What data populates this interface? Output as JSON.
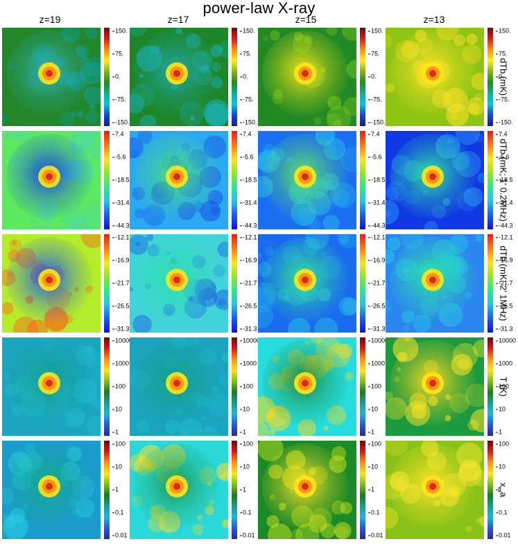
{
  "title": "power-law X-ray",
  "columns": [
    "z=19",
    "z=17",
    "z=15",
    "z=13"
  ],
  "colormaps": {
    "cmA": [
      "#141c8c",
      "#1846d6",
      "#00c8d8",
      "#11b090",
      "#1f8c1c",
      "#86b41a",
      "#ffee18",
      "#ff8c10",
      "#dd1a1a",
      "#6e0a0a"
    ],
    "cmB": [
      "#0f12d8",
      "#1a5cf5",
      "#22c6e8",
      "#2ce88a",
      "#8ee828",
      "#ffe21c",
      "#ff7a14",
      "#e81a14"
    ],
    "cmC": [
      "#28289a",
      "#2a56dc",
      "#1ab8d8",
      "#15a08e",
      "#1c7a1c",
      "#7cc21a",
      "#ffe418",
      "#ff9210",
      "#d81a18",
      "#6a0808"
    ]
  },
  "rows": [
    {
      "label": "dTb (mK)",
      "colormap": "cmA",
      "ticks": [
        "150.",
        "75.",
        "0.",
        "-75.",
        "-150."
      ],
      "panels": [
        {
          "bg": "#22862a",
          "halo": "#31b0b0",
          "spots": "#0ba5b2"
        },
        {
          "bg": "#1e8628",
          "halo": "#20a8a6",
          "spots": "#1ab6c4"
        },
        {
          "bg": "#228a24",
          "halo": "#f2e418",
          "spots": "#7ac61e"
        },
        {
          "bg": "#90c414",
          "halo": "#ffe426",
          "spots": "#ffe228"
        }
      ]
    },
    {
      "label": "dTb (mK; 1' 0.2MHz)",
      "colormap": "cmB",
      "ticks": [
        "7.4",
        "-5.6",
        "-18.5",
        "-31.4",
        "-44.3"
      ],
      "panels": [
        {
          "bg": "#5ce860",
          "halo": "#1846e6",
          "spots": "#4ad8b0"
        },
        {
          "bg": "#2aa8f0",
          "halo": "#4be078",
          "spots": "#1850e8"
        },
        {
          "bg": "#1a70f0",
          "halo": "#5fe460",
          "spots": "#2ac2ee"
        },
        {
          "bg": "#1238e6",
          "halo": "#2ee89a",
          "spots": "#2a9ef2"
        }
      ]
    },
    {
      "label": "dTb (mK; 2' 1MHz)",
      "colormap": "cmB",
      "ticks": [
        "-12.1",
        "-16.9",
        "-21.7",
        "-26.5",
        "-31.3"
      ],
      "panels": [
        {
          "bg": "#b4ec2a",
          "halo": "#1f5ae8",
          "spots": "#ff6018"
        },
        {
          "bg": "#40d4d8",
          "halo": "#2ae0a8",
          "spots": "#1a58e8"
        },
        {
          "bg": "#1a6cee",
          "halo": "#32e890",
          "spots": "#26bee8"
        },
        {
          "bg": "#2b86f0",
          "halo": "#2ce8a0",
          "spots": "#26c4e6"
        }
      ]
    },
    {
      "label": "T (K)",
      "colormap": "cmC",
      "ticks": [
        "10000",
        "1000",
        "100",
        "10",
        "1"
      ],
      "panels": [
        {
          "bg": "#1aa6c0",
          "halo": "#14a090",
          "spots": "#22bcd2"
        },
        {
          "bg": "#1aa4be",
          "halo": "#15a088",
          "spots": "#20bed4"
        },
        {
          "bg": "#26dcdc",
          "halo": "#1c8a3c",
          "spots": "#ffdc1c"
        },
        {
          "bg": "#1c9a40",
          "halo": "#ffd81c",
          "spots": "#ffe828"
        }
      ]
    },
    {
      "label": "x_a",
      "colormap": "cmC",
      "ticks": [
        "100",
        "10",
        "1",
        "0.1",
        "0.01"
      ],
      "panels": [
        {
          "bg": "#1a9ccc",
          "halo": "#16a88a",
          "spots": "#2ad0e0"
        },
        {
          "bg": "#2ad8d8",
          "halo": "#1c9a50",
          "spots": "#ffe020"
        },
        {
          "bg": "#1c8a26",
          "halo": "#ffe024",
          "spots": "#cfe620"
        },
        {
          "bg": "#88c218",
          "halo": "#ffe428",
          "spots": "#ffea30"
        }
      ]
    }
  ]
}
